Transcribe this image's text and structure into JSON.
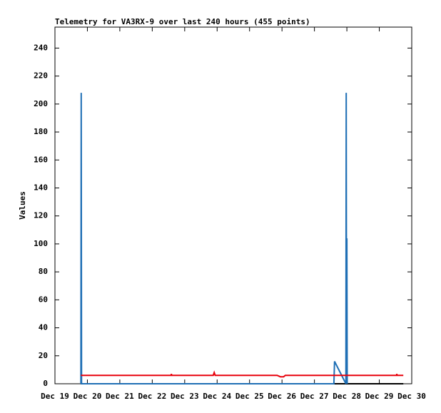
{
  "chart_data": {
    "type": "line",
    "title": "Telemetry for VA3RX-9 over last 240 hours (455 points)",
    "y_label": "Values",
    "xlim": [
      19,
      30
    ],
    "xticks": [
      {
        "value": 19,
        "label": "Dec 19"
      },
      {
        "value": 20,
        "label": "Dec 20"
      },
      {
        "value": 21,
        "label": "Dec 21"
      },
      {
        "value": 22,
        "label": "Dec 22"
      },
      {
        "value": 23,
        "label": "Dec 23"
      },
      {
        "value": 24,
        "label": "Dec 24"
      },
      {
        "value": 25,
        "label": "Dec 25"
      },
      {
        "value": 26,
        "label": "Dec 26"
      },
      {
        "value": 27,
        "label": "Dec 27"
      },
      {
        "value": 28,
        "label": "Dec 28"
      },
      {
        "value": 29,
        "label": "Dec 29"
      },
      {
        "value": 30,
        "label": "Dec 30"
      }
    ],
    "ylim": [
      0,
      255
    ],
    "yticks": [
      0,
      20,
      40,
      60,
      80,
      100,
      120,
      140,
      160,
      180,
      200,
      220,
      240
    ],
    "series": [
      {
        "color": "#000000",
        "x": [
          19.8,
          29.74
        ],
        "values": [
          0,
          0
        ]
      },
      {
        "color": "#1f6fb5",
        "x": [
          19.8,
          19.81,
          19.82,
          27.6,
          27.62,
          27.97,
          27.98,
          27.99,
          28.0,
          28.01
        ],
        "values": [
          0,
          208,
          0,
          0,
          16,
          0,
          208,
          0,
          104,
          0
        ]
      },
      {
        "color": "#e8000b",
        "x": [
          19.8,
          22.58,
          22.59,
          22.6,
          23.88,
          23.91,
          23.94,
          25.85,
          25.95,
          26.05,
          26.1,
          29.53,
          29.54,
          29.55,
          29.74
        ],
        "values": [
          6,
          6,
          7,
          6,
          6,
          8,
          6,
          6,
          5,
          5,
          6,
          6,
          7,
          6,
          6
        ]
      }
    ]
  }
}
